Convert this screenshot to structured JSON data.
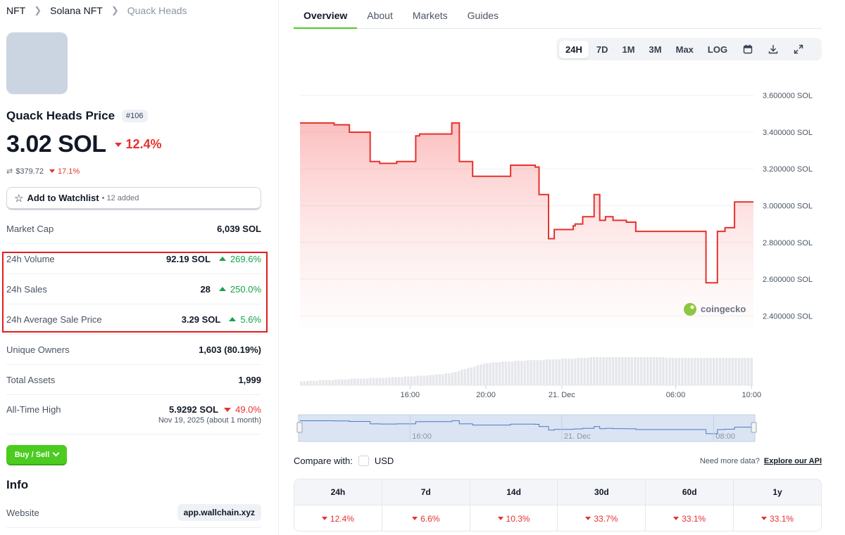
{
  "breadcrumb": [
    "NFT",
    "Solana NFT",
    "Quack Heads"
  ],
  "collection": {
    "name_price": "Quack Heads Price",
    "rank": "#106",
    "price": "3.02 SOL",
    "price_change": "12.4%",
    "usd_price": "$379.72",
    "usd_change": "17.1%"
  },
  "watchlist": {
    "label": "Add to Watchlist",
    "added": "• 12 added"
  },
  "stats": {
    "market_cap": {
      "label": "Market Cap",
      "value": "6,039 SOL"
    },
    "volume": {
      "label": "24h Volume",
      "value": "92.19 SOL",
      "change": "269.6%"
    },
    "sales": {
      "label": "24h Sales",
      "value": "28",
      "change": "250.0%"
    },
    "avg_price": {
      "label": "24h Average Sale Price",
      "value": "3.29 SOL",
      "change": "5.6%"
    },
    "owners": {
      "label": "Unique Owners",
      "value": "1,603 (80.19%)"
    },
    "assets": {
      "label": "Total Assets",
      "value": "1,999"
    },
    "ath": {
      "label": "All-Time High",
      "value": "5.9292 SOL",
      "change": "49.0%",
      "date": "Nov 19, 2025 (about 1 month)"
    }
  },
  "buy_sell": "Buy / Sell",
  "info": {
    "title": "Info",
    "website_label": "Website",
    "website": "app.wallchain.xyz"
  },
  "tabs": [
    "Overview",
    "About",
    "Markets",
    "Guides"
  ],
  "ranges": [
    "24H",
    "7D",
    "1M",
    "3M",
    "Max",
    "LOG"
  ],
  "watermark": "coingecko",
  "compare": {
    "label": "Compare with:",
    "usd": "USD",
    "api_text": "Need more data?",
    "api_link": "Explore our API"
  },
  "performance": {
    "headers": [
      "24h",
      "7d",
      "14d",
      "30d",
      "60d",
      "1y"
    ],
    "values": [
      "12.4%",
      "6.6%",
      "10.3%",
      "33.7%",
      "33.1%",
      "33.1%"
    ]
  },
  "colors": {
    "accent": "#4bcc1f",
    "down": "#e5322d",
    "up": "#16a34a",
    "highlight": "#e11d1d"
  },
  "chart_data": {
    "type": "line",
    "yunit": "SOL",
    "ylim": [
      2.34,
      3.66
    ],
    "yticks": [
      "3.600000 SOL",
      "3.400000 SOL",
      "3.200000 SOL",
      "3.000000 SOL",
      "2.800000 SOL",
      "2.600000 SOL",
      "2.400000 SOL"
    ],
    "ytick_values": [
      3.6,
      3.4,
      3.2,
      3.0,
      2.8,
      2.6,
      2.4
    ],
    "xticks": [
      "16:00",
      "20:00",
      "21. Dec",
      "06:00",
      "10:00"
    ],
    "xtick_hours": [
      16,
      20,
      24,
      30,
      34
    ],
    "xlim_hours": [
      10.2,
      34.1
    ],
    "series": [
      {
        "x": [
          10.2,
          12.0,
          12.0,
          12.8,
          12.8,
          13.9,
          13.9,
          14.4,
          14.4,
          15.3,
          15.3,
          16.3,
          16.3,
          16.5,
          16.5,
          18.2,
          18.2,
          18.6,
          18.6,
          19.3,
          19.3,
          21.3,
          21.3,
          22.6,
          22.6,
          22.8,
          22.8,
          23.3,
          23.3,
          23.6,
          23.6,
          24.6,
          24.6,
          24.7,
          24.7,
          25.1,
          25.1,
          25.7,
          25.7,
          26.0,
          26.0,
          26.3,
          26.3,
          26.7,
          26.7,
          27.4,
          27.4,
          27.9,
          27.9,
          31.6,
          31.6,
          32.2,
          32.2,
          32.6,
          32.6,
          33.1,
          33.1,
          33.9,
          33.9,
          34.1
        ],
        "y": [
          3.45,
          3.45,
          3.44,
          3.44,
          3.4,
          3.4,
          3.24,
          3.24,
          3.23,
          3.23,
          3.24,
          3.24,
          3.38,
          3.38,
          3.39,
          3.39,
          3.45,
          3.45,
          3.24,
          3.24,
          3.16,
          3.16,
          3.22,
          3.22,
          3.21,
          3.21,
          3.06,
          3.06,
          2.82,
          2.82,
          2.87,
          2.87,
          2.89,
          2.89,
          2.9,
          2.9,
          2.94,
          2.94,
          3.06,
          3.06,
          2.92,
          2.92,
          2.94,
          2.94,
          2.92,
          2.92,
          2.91,
          2.91,
          2.86,
          2.86,
          2.58,
          2.58,
          2.86,
          2.86,
          2.88,
          2.88,
          3.02,
          3.02,
          3.02,
          3.02
        ]
      }
    ],
    "volume": [
      5,
      5,
      6,
      6,
      6,
      6,
      7,
      7,
      7,
      7,
      7,
      8,
      8,
      8,
      8,
      8,
      9,
      9,
      9,
      9,
      9,
      9,
      10,
      10,
      10,
      10,
      10,
      10,
      11,
      11,
      11,
      11,
      11,
      12,
      12,
      12,
      12,
      13,
      13,
      13,
      13,
      14,
      14,
      15,
      15,
      15,
      16,
      16,
      17,
      18,
      19,
      21,
      22,
      23,
      24,
      25,
      27,
      28,
      29,
      30,
      30,
      31,
      31,
      31,
      32,
      32,
      32,
      32,
      33,
      33,
      33,
      33,
      34,
      34,
      34,
      34,
      34,
      34,
      35,
      35,
      35,
      35,
      35,
      36,
      36,
      36,
      36,
      36,
      37,
      37,
      37,
      37,
      38,
      38,
      38,
      38,
      38,
      38,
      38,
      38,
      38,
      38,
      38,
      38,
      38,
      38,
      38,
      38,
      38,
      38,
      38,
      38,
      38,
      38,
      38,
      38,
      37,
      37,
      37,
      37,
      37,
      37,
      37,
      37,
      37,
      37,
      37,
      37,
      37,
      37,
      37,
      37,
      37,
      37,
      37,
      37,
      37,
      37,
      37,
      37,
      37,
      37,
      37,
      37
    ],
    "navigator_ticks": [
      "16:00",
      "21. Dec",
      "08:00"
    ],
    "navigator_tick_hours": [
      16,
      24,
      32
    ]
  }
}
